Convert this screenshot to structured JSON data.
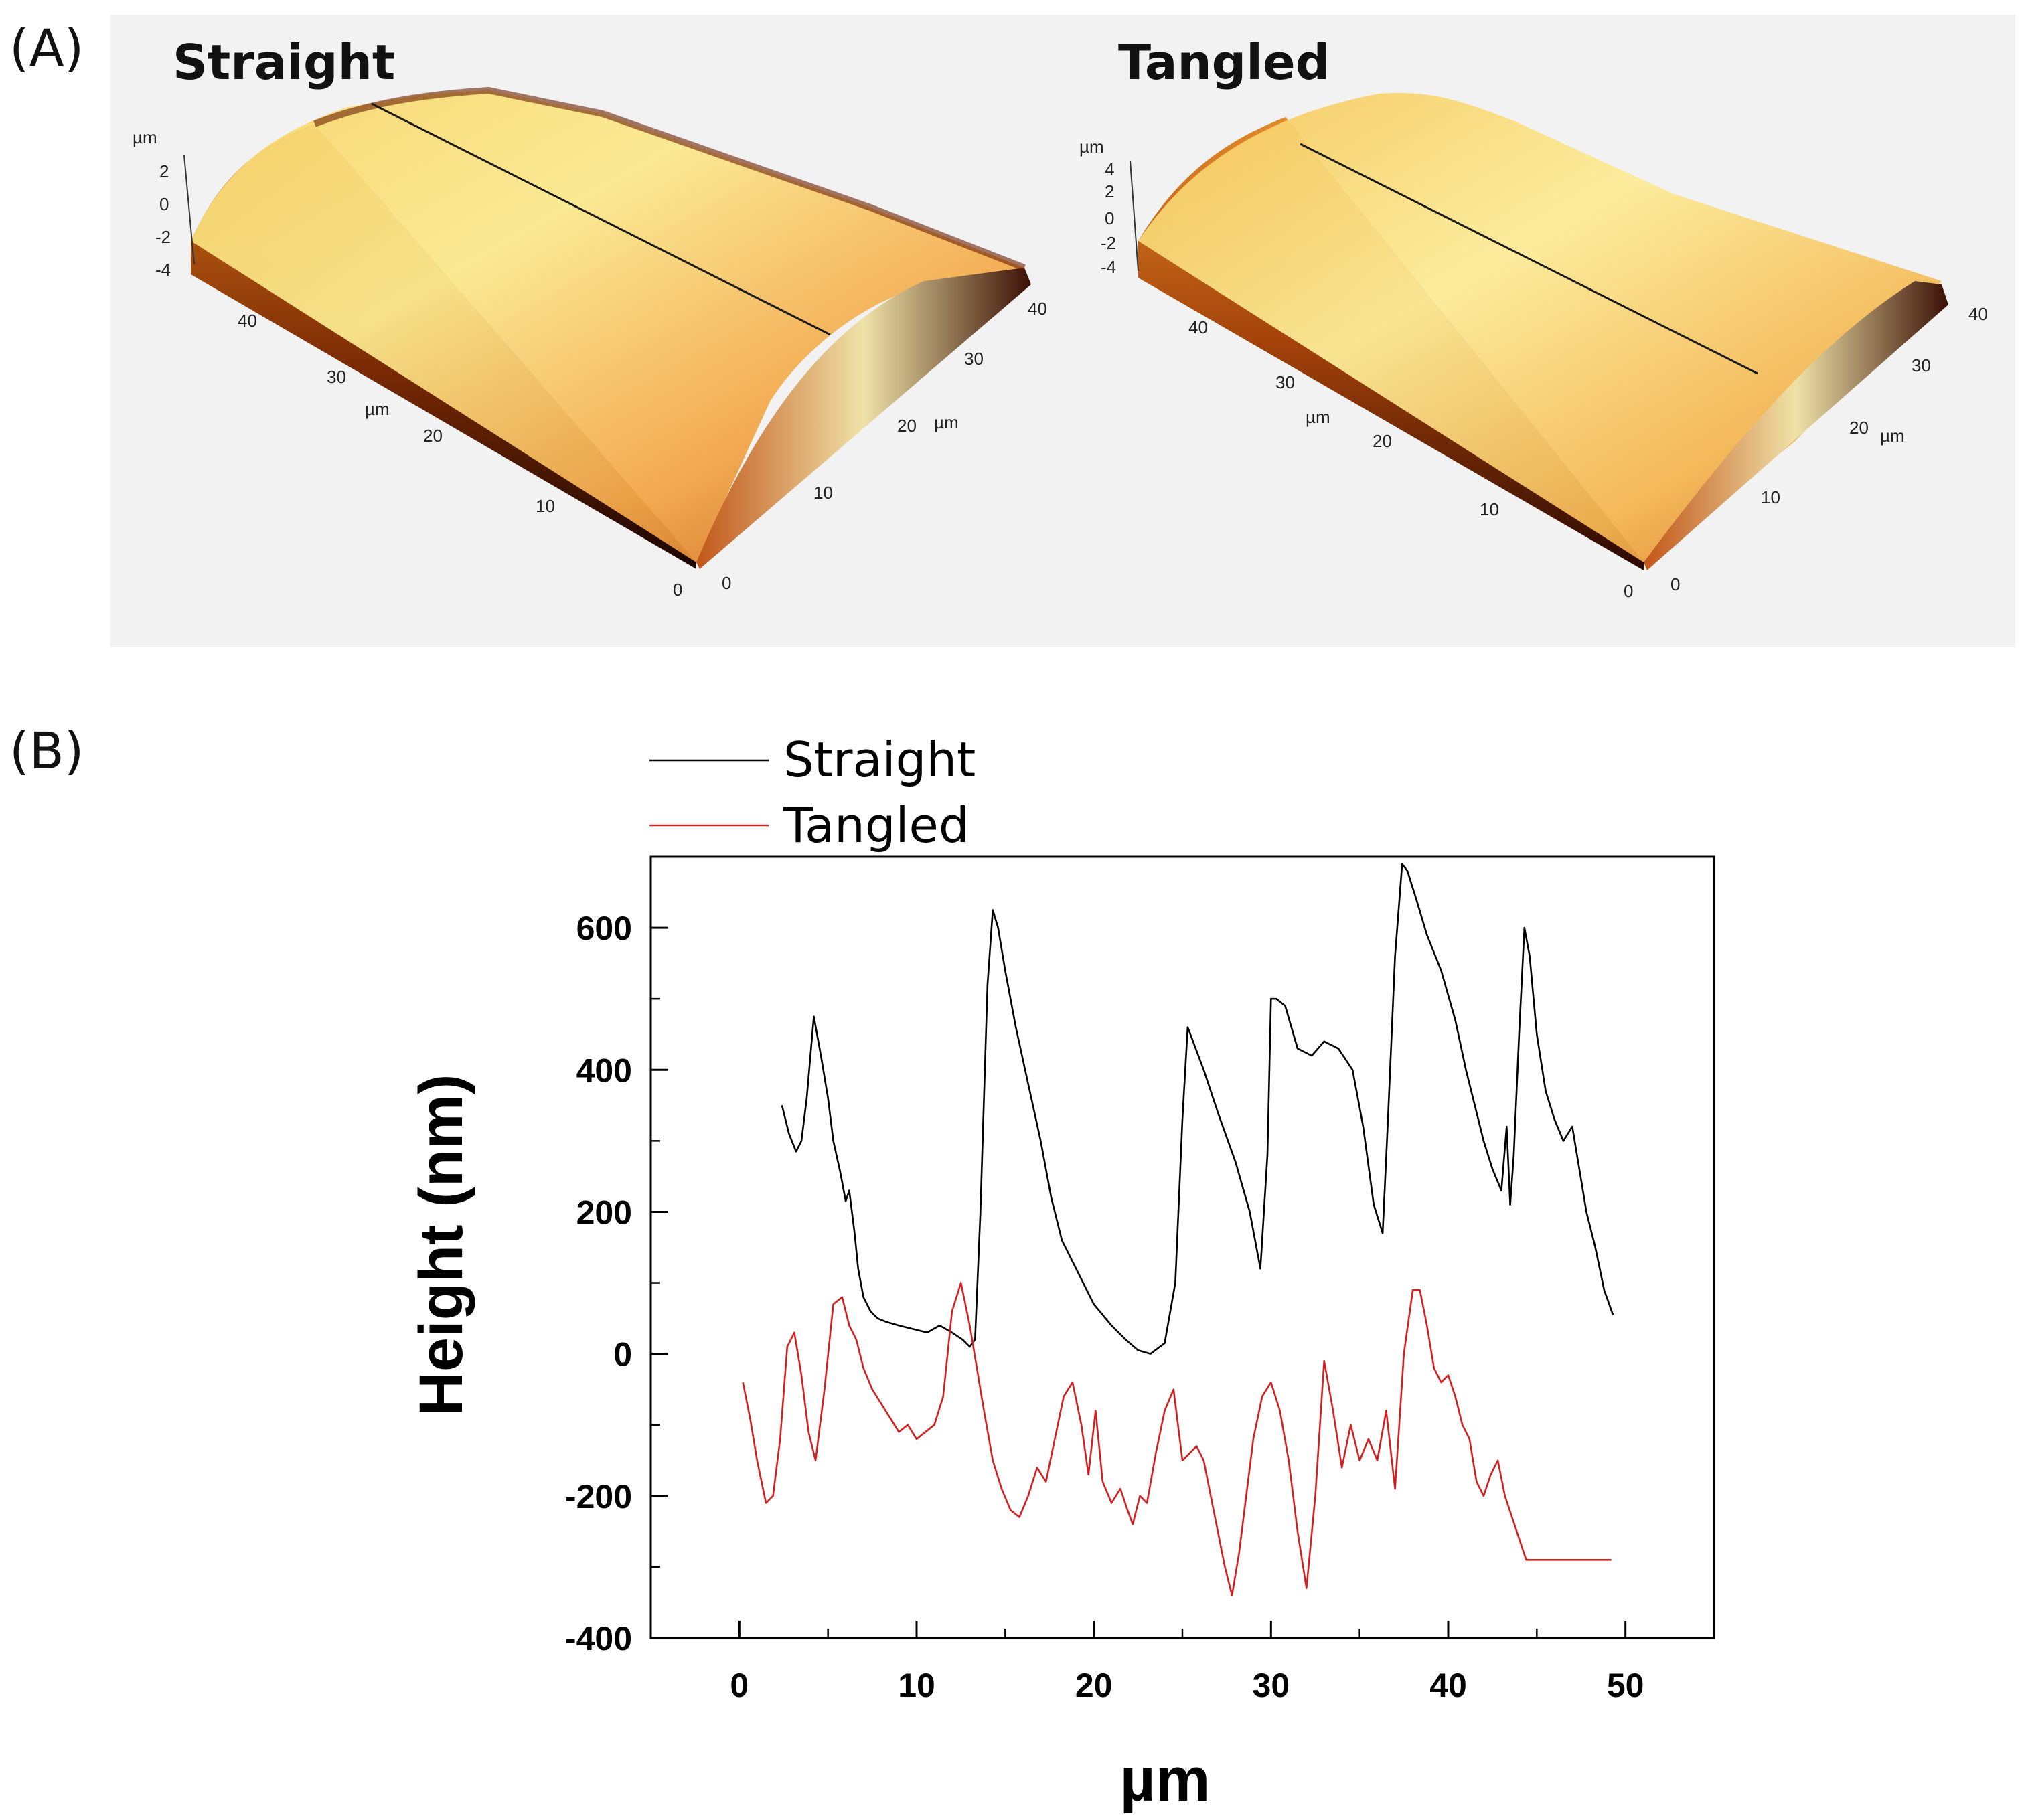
{
  "panels": {
    "a_label": "(A)",
    "b_label": "(B)"
  },
  "afm": {
    "left_title": "Straight",
    "right_title": "Tangled",
    "z_unit": "µm",
    "xy_unit": "µm",
    "left_z_ticks": [
      "2",
      "0",
      "-2",
      "-4"
    ],
    "right_z_ticks": [
      "4",
      "2",
      "0",
      "-2",
      "-4"
    ],
    "x_ticks": [
      "0",
      "10",
      "20",
      "30",
      "40"
    ],
    "y_ticks": [
      "0",
      "10",
      "20",
      "30",
      "40"
    ],
    "colors": {
      "dark": "#2a0800",
      "mid": "#c8560c",
      "light": "#fff3a8",
      "bg": "#f2f2f2"
    }
  },
  "chart_data": {
    "type": "line",
    "title": "",
    "xlabel": "µm",
    "ylabel": "Height (nm)",
    "xlim": [
      -5,
      55
    ],
    "ylim": [
      -400,
      700
    ],
    "xticks": [
      0,
      10,
      20,
      30,
      40,
      50
    ],
    "yticks": [
      -400,
      -200,
      0,
      200,
      400,
      600
    ],
    "grid": false,
    "legend_position": "top-left (above plot)",
    "series": [
      {
        "name": "Straight",
        "color": "#000000",
        "x": [
          2.4,
          2.8,
          3.2,
          3.5,
          3.8,
          4.2,
          4.6,
          5.0,
          5.3,
          5.7,
          6.0,
          6.2,
          6.5,
          6.7,
          7.0,
          7.4,
          7.8,
          8.3,
          9.0,
          9.8,
          10.6,
          11.3,
          12.0,
          12.6,
          13.0,
          13.3,
          13.6,
          14.0,
          14.3,
          14.6,
          15.0,
          15.6,
          16.3,
          17.0,
          17.6,
          18.2,
          19.0,
          20.0,
          21.0,
          21.8,
          22.5,
          23.2,
          24.0,
          24.6,
          25.0,
          25.3,
          25.6,
          26.2,
          27.0,
          28.0,
          28.8,
          29.4,
          29.8,
          30.0,
          30.3,
          30.8,
          31.5,
          32.3,
          33.0,
          33.8,
          34.6,
          35.2,
          35.8,
          36.3,
          36.6,
          37.0,
          37.4,
          37.7,
          38.2,
          38.8,
          39.6,
          40.4,
          41.0,
          41.5,
          42.0,
          42.5,
          43.0,
          43.3,
          43.5,
          43.7,
          44.0,
          44.3,
          44.6,
          45.0,
          45.5,
          46.0,
          46.5,
          47.0,
          47.4,
          47.8,
          48.3,
          48.8,
          49.3
        ],
        "values": [
          350,
          310,
          285,
          300,
          360,
          475,
          420,
          360,
          300,
          255,
          215,
          230,
          170,
          120,
          80,
          60,
          50,
          45,
          40,
          35,
          30,
          40,
          30,
          20,
          10,
          20,
          200,
          520,
          625,
          600,
          540,
          460,
          380,
          300,
          220,
          160,
          120,
          70,
          40,
          20,
          5,
          0,
          15,
          100,
          330,
          460,
          440,
          400,
          340,
          270,
          200,
          120,
          280,
          500,
          500,
          490,
          430,
          420,
          440,
          430,
          400,
          320,
          210,
          170,
          330,
          560,
          690,
          680,
          640,
          590,
          540,
          470,
          400,
          350,
          300,
          260,
          230,
          320,
          210,
          280,
          450,
          600,
          560,
          450,
          370,
          330,
          300,
          320,
          260,
          200,
          150,
          90,
          55
        ]
      },
      {
        "name": "Tangled",
        "color": "#d42020",
        "x": [
          0.2,
          0.6,
          1.0,
          1.5,
          1.9,
          2.3,
          2.7,
          3.1,
          3.5,
          3.9,
          4.3,
          4.8,
          5.3,
          5.8,
          6.2,
          6.6,
          7.0,
          7.5,
          8.0,
          8.5,
          9.0,
          9.5,
          10.0,
          10.5,
          11.0,
          11.5,
          12.0,
          12.5,
          13.0,
          13.4,
          13.8,
          14.3,
          14.8,
          15.3,
          15.8,
          16.3,
          16.8,
          17.3,
          17.8,
          18.3,
          18.8,
          19.3,
          19.7,
          20.1,
          20.5,
          21.0,
          21.5,
          21.9,
          22.2,
          22.6,
          23.0,
          23.5,
          24.0,
          24.5,
          25.0,
          25.4,
          25.8,
          26.2,
          26.6,
          27.0,
          27.4,
          27.8,
          28.2,
          28.6,
          29.0,
          29.5,
          30.0,
          30.5,
          31.0,
          31.5,
          32.0,
          32.5,
          33.0,
          33.5,
          34.0,
          34.5,
          35.0,
          35.5,
          36.0,
          36.5,
          37.0,
          37.5,
          38.0,
          38.4,
          38.8,
          39.2,
          39.6,
          40.0,
          40.4,
          40.8,
          41.2,
          41.6,
          42.0,
          42.4,
          42.8,
          43.2,
          43.6,
          44.0,
          44.4,
          44.8,
          45.2,
          45.6,
          46.0,
          46.4,
          46.8,
          47.2,
          47.6,
          48.0,
          48.4,
          48.8,
          49.2
        ],
        "values": [
          -40,
          -90,
          -150,
          -210,
          -200,
          -120,
          10,
          30,
          -30,
          -110,
          -150,
          -50,
          70,
          80,
          40,
          20,
          -20,
          -50,
          -70,
          -90,
          -110,
          -100,
          -120,
          -110,
          -100,
          -60,
          60,
          100,
          40,
          -20,
          -80,
          -150,
          -190,
          -220,
          -230,
          -200,
          -160,
          -180,
          -120,
          -60,
          -40,
          -100,
          -170,
          -80,
          -180,
          -210,
          -190,
          -220,
          -240,
          -200,
          -210,
          -140,
          -80,
          -50,
          -150,
          -140,
          -130,
          -150,
          -200,
          -250,
          -300,
          -340,
          -280,
          -200,
          -120,
          -60,
          -40,
          -80,
          -150,
          -250,
          -330,
          -200,
          -10,
          -80,
          -160,
          -100,
          -150,
          -120,
          -150,
          -80,
          -190,
          0,
          90,
          90,
          40,
          -20,
          -40,
          -30,
          -60,
          -100,
          -120,
          -180,
          -200,
          -170,
          -150,
          -200,
          -230,
          -260,
          -290,
          -290,
          -290,
          -290,
          -290,
          -290,
          -290,
          -290,
          -290,
          -290,
          -290,
          -290,
          -290
        ]
      }
    ]
  }
}
